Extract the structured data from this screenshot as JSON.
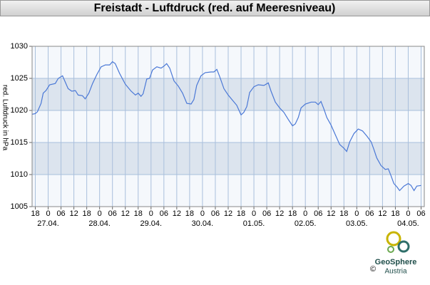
{
  "chart_data": {
    "type": "line",
    "title": "Freistadt - Luftdruck (red. auf Meeresniveau)",
    "y_label": "red. Luftdruck in hPa",
    "x": [
      -7.5,
      -6,
      -5,
      -3.3,
      -2.3,
      -1,
      0.7,
      3.3,
      4.7,
      6.7,
      8,
      9.3,
      11,
      12.7,
      14,
      16,
      17.3,
      19,
      20.7,
      22.7,
      24.7,
      26.7,
      28.7,
      30,
      31.3,
      33.3,
      36,
      38.7,
      40.7,
      42,
      43.3,
      44.3,
      46,
      47.3,
      48.7,
      50.7,
      52.7,
      54,
      55.3,
      56.7,
      58.7,
      60.7,
      62.7,
      64.7,
      66.7,
      68,
      69.3,
      71.3,
      73.3,
      76,
      77.3,
      78.7,
      80,
      82,
      84,
      86,
      88,
      90,
      91.3,
      92.7,
      94,
      96,
      98,
      100.7,
      102.7,
      104,
      106,
      108,
      110,
      112,
      114,
      115.3,
      116.7,
      118,
      120,
      122.7,
      124.7,
      126,
      127.3,
      128.7,
      130,
      132,
      134,
      136,
      138,
      139.3,
      140.7,
      142.7,
      144.7,
      146.7,
      148.7,
      150.7,
      152,
      153.3,
      155.3,
      157.3,
      158.7,
      160,
      161.3,
      162.7,
      164,
      166,
      168,
      169.3,
      170.7,
      172,
      174
    ],
    "values": [
      1019.4,
      1019.5,
      1019.8,
      1021.1,
      1022.7,
      1023.1,
      1024.0,
      1024.2,
      1025.0,
      1025.4,
      1024.4,
      1023.4,
      1023.0,
      1023.1,
      1022.4,
      1022.3,
      1021.8,
      1022.7,
      1024.2,
      1025.6,
      1026.8,
      1027.1,
      1027.1,
      1027.6,
      1027.3,
      1025.8,
      1024.1,
      1023.0,
      1022.4,
      1022.7,
      1022.2,
      1022.6,
      1024.9,
      1025.0,
      1026.3,
      1026.8,
      1026.6,
      1026.9,
      1027.3,
      1026.6,
      1024.6,
      1023.8,
      1022.7,
      1021.1,
      1021.0,
      1021.7,
      1023.9,
      1025.4,
      1025.9,
      1026.0,
      1026.0,
      1026.4,
      1025.3,
      1023.4,
      1022.4,
      1021.6,
      1020.8,
      1019.3,
      1019.7,
      1020.6,
      1022.8,
      1023.7,
      1024.0,
      1023.9,
      1024.3,
      1023.0,
      1021.3,
      1020.4,
      1019.7,
      1018.6,
      1017.6,
      1017.9,
      1018.9,
      1020.4,
      1021.0,
      1021.3,
      1021.3,
      1020.9,
      1021.4,
      1020.2,
      1018.9,
      1017.7,
      1016.2,
      1014.7,
      1014.1,
      1013.6,
      1015.1,
      1016.4,
      1017.1,
      1016.8,
      1016.0,
      1015.1,
      1013.9,
      1012.6,
      1011.4,
      1010.8,
      1010.9,
      1009.8,
      1008.6,
      1008.1,
      1007.5,
      1008.2,
      1008.6,
      1008.3,
      1007.5,
      1008.2,
      1008.3
    ],
    "color": "#4a78d6",
    "xlim": [
      -7.5,
      175.5
    ],
    "ylim": [
      1005,
      1030
    ],
    "yticks": [
      1005,
      1010,
      1015,
      1020,
      1025,
      1030
    ],
    "xticks": [
      {
        "value": -6,
        "label": "18"
      },
      {
        "value": 0,
        "label": "0"
      },
      {
        "value": 6,
        "label": "06"
      },
      {
        "value": 12,
        "label": "12"
      },
      {
        "value": 18,
        "label": "18"
      },
      {
        "value": 24,
        "label": "0"
      },
      {
        "value": 30,
        "label": "06"
      },
      {
        "value": 36,
        "label": "12"
      },
      {
        "value": 42,
        "label": "18"
      },
      {
        "value": 48,
        "label": "0"
      },
      {
        "value": 54,
        "label": "06"
      },
      {
        "value": 60,
        "label": "12"
      },
      {
        "value": 66,
        "label": "18"
      },
      {
        "value": 72,
        "label": "0"
      },
      {
        "value": 78,
        "label": "06"
      },
      {
        "value": 84,
        "label": "12"
      },
      {
        "value": 90,
        "label": "18"
      },
      {
        "value": 96,
        "label": "0"
      },
      {
        "value": 102,
        "label": "06"
      },
      {
        "value": 108,
        "label": "12"
      },
      {
        "value": 114,
        "label": "18"
      },
      {
        "value": 120,
        "label": "0"
      },
      {
        "value": 126,
        "label": "06"
      },
      {
        "value": 132,
        "label": "12"
      },
      {
        "value": 138,
        "label": "18"
      },
      {
        "value": 144,
        "label": "0"
      },
      {
        "value": 150,
        "label": "06"
      },
      {
        "value": 156,
        "label": "12"
      },
      {
        "value": 162,
        "label": "18"
      },
      {
        "value": 168,
        "label": "0"
      },
      {
        "value": 174,
        "label": "06"
      }
    ],
    "xdates": [
      {
        "value": 0,
        "label": "27.04."
      },
      {
        "value": 24,
        "label": "28.04."
      },
      {
        "value": 48,
        "label": "29.04."
      },
      {
        "value": 72,
        "label": "30.04."
      },
      {
        "value": 96,
        "label": "01.05."
      },
      {
        "value": 120,
        "label": "02.05."
      },
      {
        "value": 144,
        "label": "03.05."
      },
      {
        "value": 168,
        "label": "04.05."
      }
    ],
    "grid": true,
    "bands": true
  },
  "logo": {
    "name": "GeoSphere",
    "country": "Austria",
    "copyright": "©"
  }
}
